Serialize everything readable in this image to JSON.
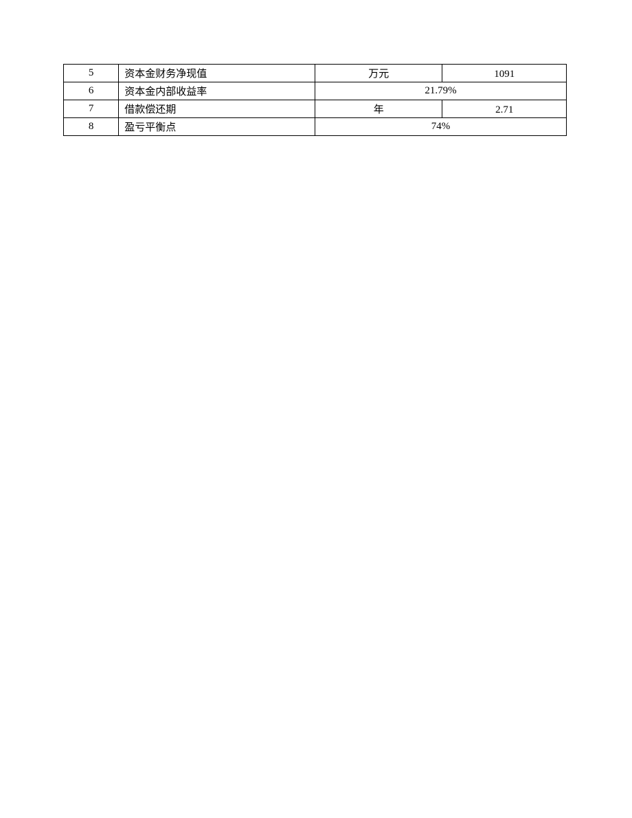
{
  "table": {
    "rows": [
      {
        "num": "5",
        "label": "资本金财务净现值",
        "unit": "万元",
        "value": "1091",
        "merged": false
      },
      {
        "num": "6",
        "label": "资本金内部收益率",
        "value": "21.79%",
        "merged": true
      },
      {
        "num": "7",
        "label": "借款偿还期",
        "unit": "年",
        "value": "2.71",
        "merged": false
      },
      {
        "num": "8",
        "label": "盈亏平衡点",
        "value": "74%",
        "merged": true
      }
    ]
  }
}
